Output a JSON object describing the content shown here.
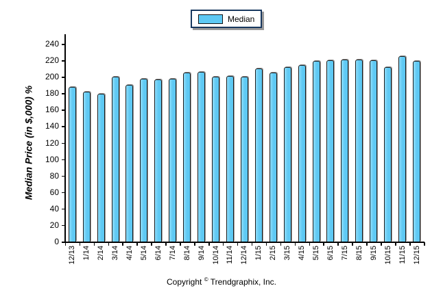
{
  "legend": {
    "label": "Median"
  },
  "y_axis": {
    "title": "Median Price (in $,000) %"
  },
  "footer": {
    "prefix": "Copyright ",
    "symbol": "©",
    "suffix": " Trendgraphix, Inc."
  },
  "colors": {
    "bar_fill": "#5EC9F4",
    "bar_fill_light": "#8EDCF8",
    "bar_border": "#1B1B1B",
    "legend_border": "#17375E",
    "shadow": "#9A9A9A",
    "axis": "#000000"
  },
  "chart_data": {
    "type": "bar",
    "title": "",
    "xlabel": "",
    "ylabel": "Median Price (in $,000) %",
    "categories": [
      "12/13",
      "1/14",
      "2/14",
      "3/14",
      "4/14",
      "5/14",
      "6/14",
      "7/14",
      "8/14",
      "9/14",
      "10/14",
      "11/14",
      "12/14",
      "1/15",
      "2/15",
      "3/15",
      "4/15",
      "5/15",
      "6/15",
      "7/15",
      "8/15",
      "9/15",
      "10/15",
      "11/15",
      "12/15"
    ],
    "series": [
      {
        "name": "Median",
        "values": [
          188,
          182,
          179,
          200,
          190,
          198,
          197,
          198,
          205,
          206,
          200,
          201,
          200,
          210,
          205,
          212,
          214,
          219,
          220,
          221,
          221,
          220,
          212,
          225,
          219
        ]
      }
    ],
    "ylim": [
      0,
      240
    ],
    "ytick_step": 20,
    "grid": false,
    "legend_position": "top-center",
    "x_labels_rotated_degrees": 90,
    "annotation": "Copyright © Trendgraphix, Inc."
  }
}
